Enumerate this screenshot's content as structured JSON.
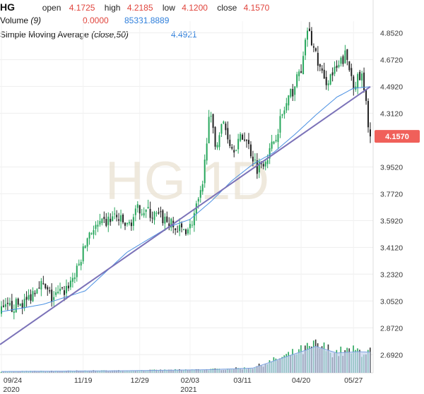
{
  "header": {
    "symbol": "HG",
    "open_label": "open",
    "open_value": "4.1725",
    "high_label": "high",
    "high_value": "4.2185",
    "low_label": "low",
    "low_value": "4.1200",
    "close_label": "close",
    "close_value": "4.1570",
    "volume_label": "Volume",
    "volume_param": "(9)",
    "volume_value1": "0.0000",
    "volume_value2": "85331.8889",
    "sma_label": "Simple Moving Average",
    "sma_param": "(close,50)",
    "sma_value": "4.4921"
  },
  "watermark": "HG 1D",
  "colors": {
    "up": "#26a65b",
    "down": "#222222",
    "sma": "#4a90e2",
    "trendline": "#7b72b8",
    "last_price_bg": "#f0605a",
    "volume_fill": "#c5d3ef",
    "volume_line": "#7da4e0"
  },
  "chart_data": {
    "type": "candlestick",
    "ylim": [
      2.57,
      4.93
    ],
    "y_ticks": [
      "4.8520",
      "4.6720",
      "4.4920",
      "4.3120",
      "3.9520",
      "3.7720",
      "3.5920",
      "3.4120",
      "3.2320",
      "3.0520",
      "2.8720",
      "2.6920"
    ],
    "y_tick_values": [
      4.852,
      4.672,
      4.492,
      4.312,
      3.952,
      3.772,
      3.592,
      3.412,
      3.232,
      3.052,
      2.872,
      2.692
    ],
    "x_tick_labels": [
      {
        "label": "09/24",
        "sub": "2020",
        "index": 0
      },
      {
        "label": "11/19",
        "sub": "",
        "index": 39
      },
      {
        "label": "12/29",
        "sub": "",
        "index": 66
      },
      {
        "label": "02/03",
        "sub": "2021",
        "index": 90
      },
      {
        "label": "03/11",
        "sub": "",
        "index": 115
      },
      {
        "label": "04/20",
        "sub": "",
        "index": 143
      },
      {
        "label": "05/27",
        "sub": "",
        "index": 168
      }
    ],
    "last_price": "4.1570",
    "last_price_value": 4.157,
    "keyframes": [
      [
        0,
        2.98
      ],
      [
        6,
        3.02
      ],
      [
        12,
        3.05
      ],
      [
        18,
        3.18
      ],
      [
        24,
        3.07
      ],
      [
        30,
        3.12
      ],
      [
        36,
        3.25
      ],
      [
        42,
        3.52
      ],
      [
        48,
        3.56
      ],
      [
        54,
        3.62
      ],
      [
        60,
        3.55
      ],
      [
        66,
        3.68
      ],
      [
        72,
        3.63
      ],
      [
        78,
        3.6
      ],
      [
        84,
        3.52
      ],
      [
        90,
        3.55
      ],
      [
        96,
        3.8
      ],
      [
        99,
        4.33
      ],
      [
        102,
        4.1
      ],
      [
        106,
        4.25
      ],
      [
        110,
        4.08
      ],
      [
        116,
        4.16
      ],
      [
        122,
        3.95
      ],
      [
        128,
        4.05
      ],
      [
        134,
        4.3
      ],
      [
        140,
        4.5
      ],
      [
        144,
        4.66
      ],
      [
        146,
        4.88
      ],
      [
        150,
        4.7
      ],
      [
        154,
        4.52
      ],
      [
        160,
        4.6
      ],
      [
        164,
        4.7
      ],
      [
        168,
        4.52
      ],
      [
        172,
        4.55
      ],
      [
        174,
        4.36
      ],
      [
        176,
        4.157
      ]
    ],
    "sma_keyframes": [
      [
        0,
        2.98
      ],
      [
        20,
        3.03
      ],
      [
        40,
        3.12
      ],
      [
        60,
        3.38
      ],
      [
        80,
        3.55
      ],
      [
        90,
        3.6
      ],
      [
        100,
        3.72
      ],
      [
        110,
        3.86
      ],
      [
        120,
        3.97
      ],
      [
        130,
        4.05
      ],
      [
        140,
        4.17
      ],
      [
        150,
        4.3
      ],
      [
        160,
        4.42
      ],
      [
        168,
        4.48
      ],
      [
        176,
        4.49
      ]
    ],
    "trendline": [
      [
        -2,
        2.76
      ],
      [
        176,
        4.49
      ]
    ],
    "volume_keyframes": [
      [
        0,
        0.05
      ],
      [
        60,
        0.08
      ],
      [
        100,
        0.12
      ],
      [
        120,
        0.18
      ],
      [
        130,
        0.45
      ],
      [
        145,
        0.85
      ],
      [
        150,
        1.0
      ],
      [
        160,
        0.75
      ],
      [
        170,
        0.8
      ],
      [
        176,
        0.78
      ]
    ]
  }
}
